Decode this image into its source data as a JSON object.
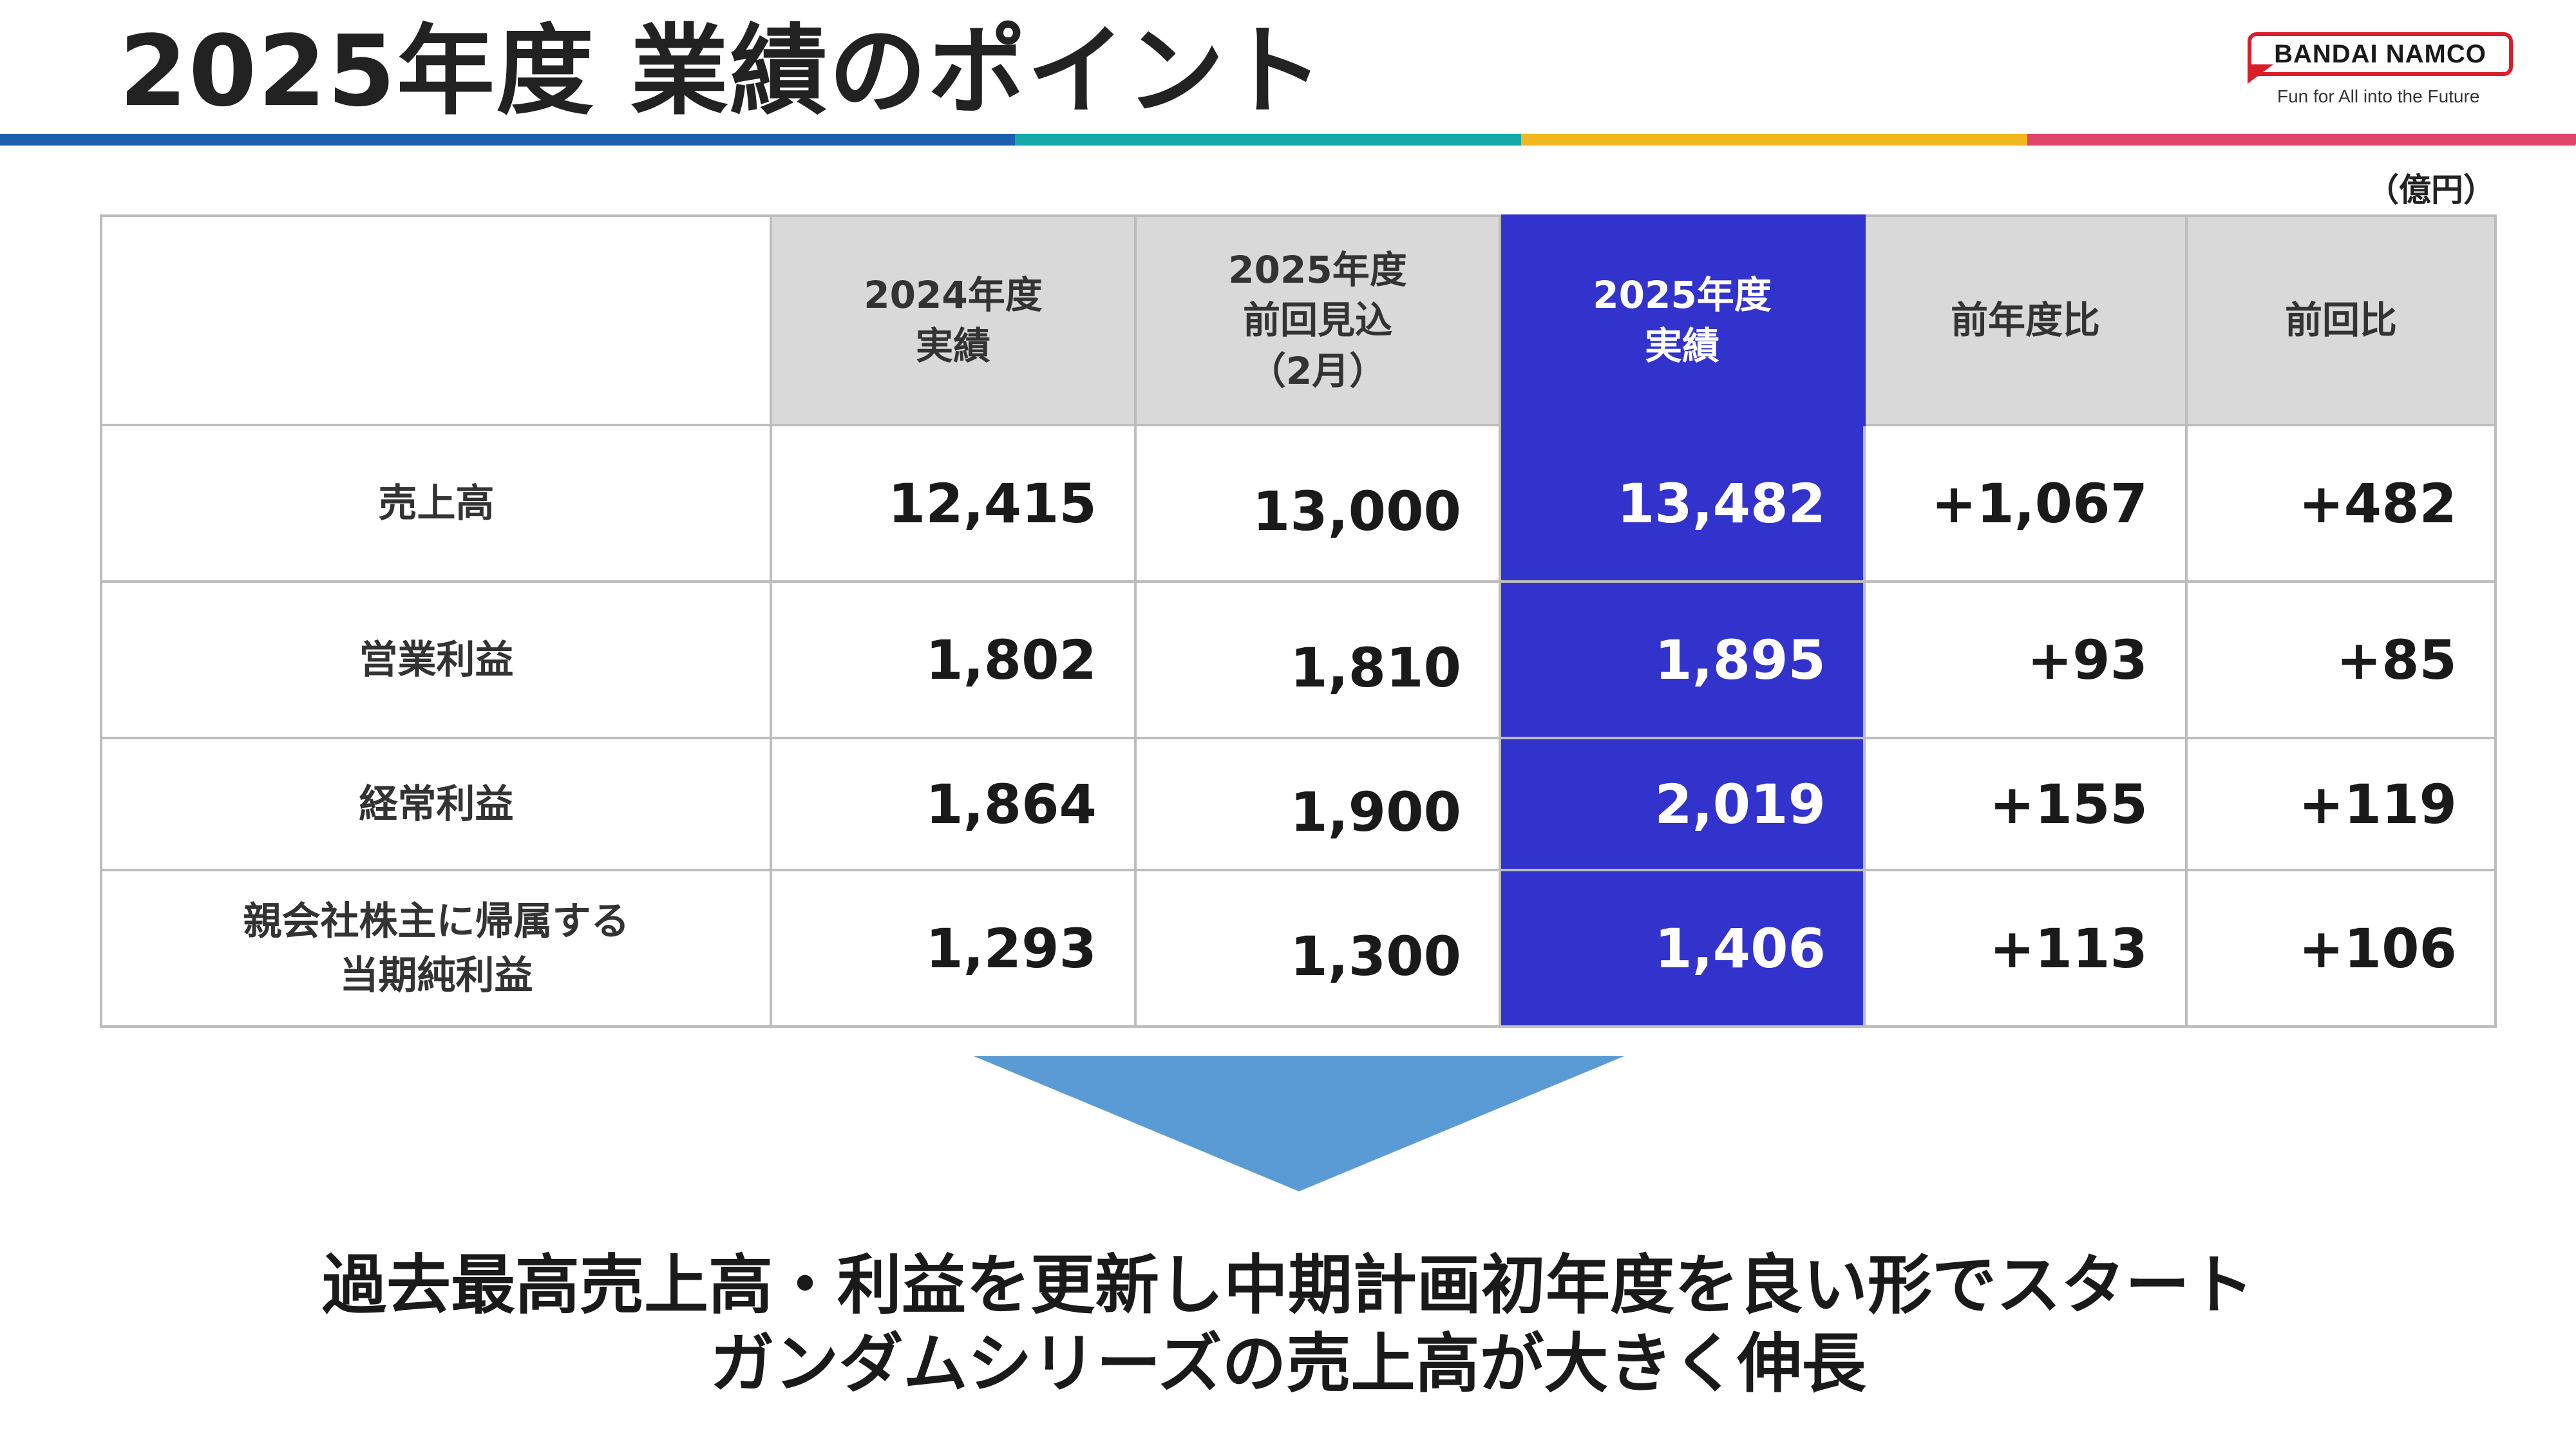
{
  "header": {
    "title": "2025年度 業績のポイント",
    "bar_colors": [
      "#1b5fae",
      "#15a9a9",
      "#f0b81e",
      "#e0456b"
    ]
  },
  "logo": {
    "brand": "BANDAI NAMCO",
    "tagline": "Fun for All into the Future",
    "accent_color": "#d91e2a"
  },
  "unit_label": "（億円）",
  "table": {
    "highlight_color": "#3232cc",
    "columns": [
      "2024年度\n実績",
      "2025年度\n前回見込\n（2月）",
      "2025年度\n実績",
      "前年度比",
      "前回比"
    ],
    "rows": [
      {
        "label": "売上高",
        "values": [
          "12,415",
          "13,000",
          "13,482",
          "+1,067",
          "+482"
        ]
      },
      {
        "label": "営業利益",
        "values": [
          "1,802",
          "1,810",
          "1,895",
          "+93",
          "+85"
        ]
      },
      {
        "label": "経常利益",
        "values": [
          "1,864",
          "1,900",
          "2,019",
          "+155",
          "+119"
        ]
      },
      {
        "label": "親会社株主に帰属する\n当期純利益",
        "values": [
          "1,293",
          "1,300",
          "1,406",
          "+113",
          "+106"
        ]
      }
    ]
  },
  "arrow": {
    "color": "#5b9bd5",
    "icon": "down-arrow-icon"
  },
  "conclusion": {
    "line1": "過去最高売上高・利益を更新し中期計画初年度を良い形でスタート",
    "line2": "ガンダムシリーズの売上高が大きく伸長"
  }
}
